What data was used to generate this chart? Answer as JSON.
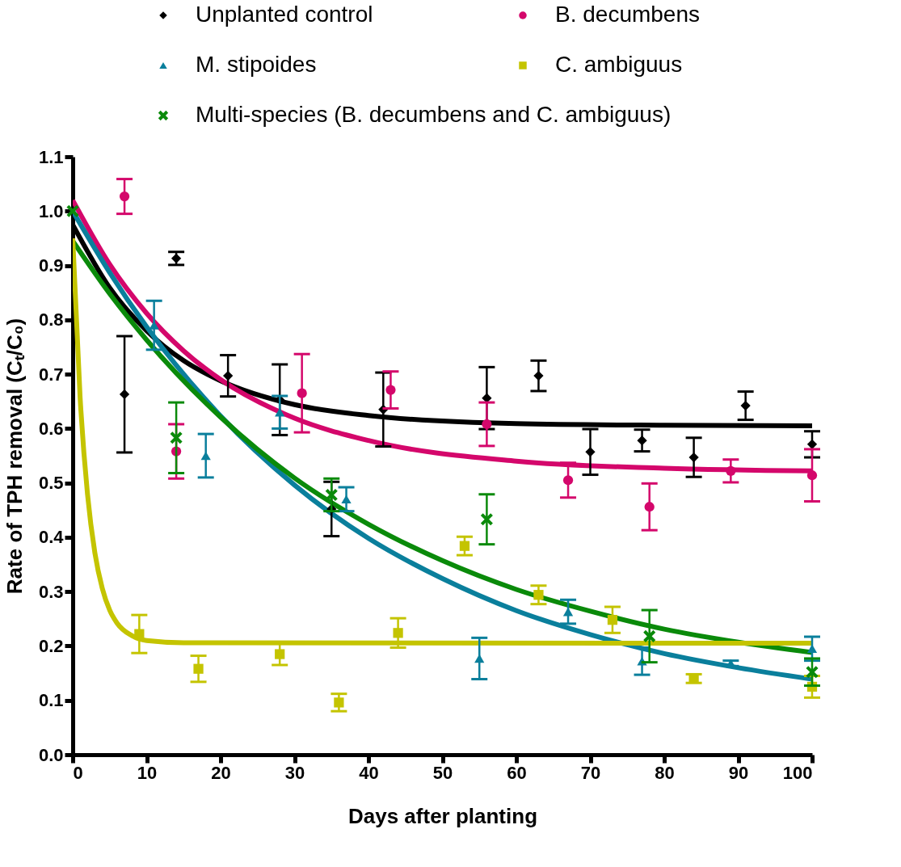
{
  "chart_data": {
    "type": "scatter",
    "xlabel": "Days after planting",
    "ylabel": "Rate of TPH removal (Cₜ/C₀)",
    "xlim": [
      0,
      100
    ],
    "xticks": [
      0,
      10,
      20,
      30,
      40,
      50,
      60,
      70,
      80,
      90,
      100
    ],
    "ylim": [
      0,
      1.1
    ],
    "yticks": [
      {
        "value": 0,
        "label": "0.0"
      },
      0.1,
      0.2,
      0.3,
      0.4,
      0.5,
      0.6,
      0.7,
      0.8,
      0.9,
      {
        "value": 1,
        "label": "1.0"
      },
      1.1
    ],
    "grid": false,
    "legend": "top",
    "line_style": "solid",
    "series": [
      {
        "name": "Unplanted control",
        "marker": "diamond",
        "color": "#000000",
        "x": [
          7,
          14,
          21,
          28,
          35,
          42,
          56,
          63,
          70,
          77,
          84,
          91,
          100
        ],
        "values": [
          0.663,
          0.913,
          0.697,
          0.653,
          0.452,
          0.635,
          0.656,
          0.697,
          0.557,
          0.578,
          0.547,
          0.642,
          0.571
        ],
        "errors": [
          0.107,
          0.012,
          0.038,
          0.065,
          0.05,
          0.068,
          0.057,
          0.028,
          0.042,
          0.02,
          0.036,
          0.026,
          0.024
        ]
      },
      {
        "name": "B. decumbens",
        "marker": "circle",
        "color": "#d4076b",
        "x": [
          7,
          14,
          31,
          43,
          56,
          67,
          78,
          89,
          100
        ],
        "values": [
          1.027,
          0.558,
          0.665,
          0.671,
          0.608,
          0.505,
          0.456,
          0.522,
          0.514
        ],
        "errors": [
          0.032,
          0.05,
          0.072,
          0.034,
          0.04,
          0.032,
          0.043,
          0.021,
          0.048
        ]
      },
      {
        "name": "M. stipoides",
        "marker": "triangle",
        "color": "#0a7f9c",
        "x": [
          11,
          18,
          28,
          37,
          55,
          67,
          77,
          89,
          100
        ],
        "values": [
          0.79,
          0.55,
          0.63,
          0.47,
          0.177,
          0.263,
          0.172,
          0.168,
          0.195
        ],
        "errors": [
          0.045,
          0.04,
          0.03,
          0.022,
          0.038,
          0.022,
          0.025,
          0.005,
          0.022
        ]
      },
      {
        "name": "C. ambiguus",
        "marker": "square",
        "color": "#c4c400",
        "x": [
          9,
          17,
          28,
          36,
          44,
          53,
          63,
          73,
          84,
          100
        ],
        "values": [
          0.222,
          0.158,
          0.185,
          0.096,
          0.224,
          0.384,
          0.294,
          0.248,
          0.14,
          0.125
        ],
        "errors": [
          0.035,
          0.024,
          0.02,
          0.016,
          0.027,
          0.017,
          0.017,
          0.024,
          0.008,
          0.02
        ]
      },
      {
        "name": "Multi-species (B. decumbens and C. ambiguus)",
        "marker": "cross",
        "color": "#0a8a0a",
        "x": [
          0,
          14,
          35,
          56,
          78,
          100
        ],
        "values": [
          1.0,
          0.583,
          0.478,
          0.433,
          0.218,
          0.152
        ],
        "errors": [
          null,
          0.065,
          0.03,
          0.046,
          0.048,
          0.025
        ]
      },
      {
        "type": "line",
        "color": "#000000",
        "x": [
          0,
          5,
          10,
          15,
          20,
          30,
          40,
          60,
          80,
          100
        ],
        "values": [
          0.975,
          0.859,
          0.78,
          0.725,
          0.688,
          0.644,
          0.624,
          0.609,
          0.606,
          0.605
        ]
      },
      {
        "type": "line",
        "color": "#d4076b",
        "x": [
          0,
          5,
          10,
          15,
          20,
          30,
          40,
          60,
          80,
          100
        ],
        "values": [
          1.02,
          0.902,
          0.812,
          0.743,
          0.69,
          0.619,
          0.578,
          0.54,
          0.527,
          0.522
        ]
      },
      {
        "type": "line",
        "color": "#0a7f9c",
        "x": [
          0,
          5,
          10,
          20,
          30,
          40,
          50,
          60,
          70,
          80,
          90,
          100
        ],
        "values": [
          1.0,
          0.887,
          0.787,
          0.623,
          0.496,
          0.398,
          0.324,
          0.265,
          0.221,
          0.186,
          0.16,
          0.139
        ]
      },
      {
        "type": "line",
        "color": "#0a8a0a",
        "x": [
          0,
          5,
          10,
          20,
          30,
          40,
          50,
          60,
          70,
          80,
          90,
          100
        ],
        "values": [
          0.945,
          0.848,
          0.763,
          0.621,
          0.509,
          0.424,
          0.357,
          0.304,
          0.264,
          0.231,
          0.207,
          0.188
        ]
      },
      {
        "type": "line",
        "color": "#c4c400",
        "x": [
          0,
          1,
          2,
          3,
          4,
          5,
          6,
          8,
          10,
          15,
          100
        ],
        "values": [
          0.95,
          0.657,
          0.479,
          0.371,
          0.306,
          0.266,
          0.242,
          0.219,
          0.21,
          0.206,
          0.205
        ]
      }
    ]
  }
}
